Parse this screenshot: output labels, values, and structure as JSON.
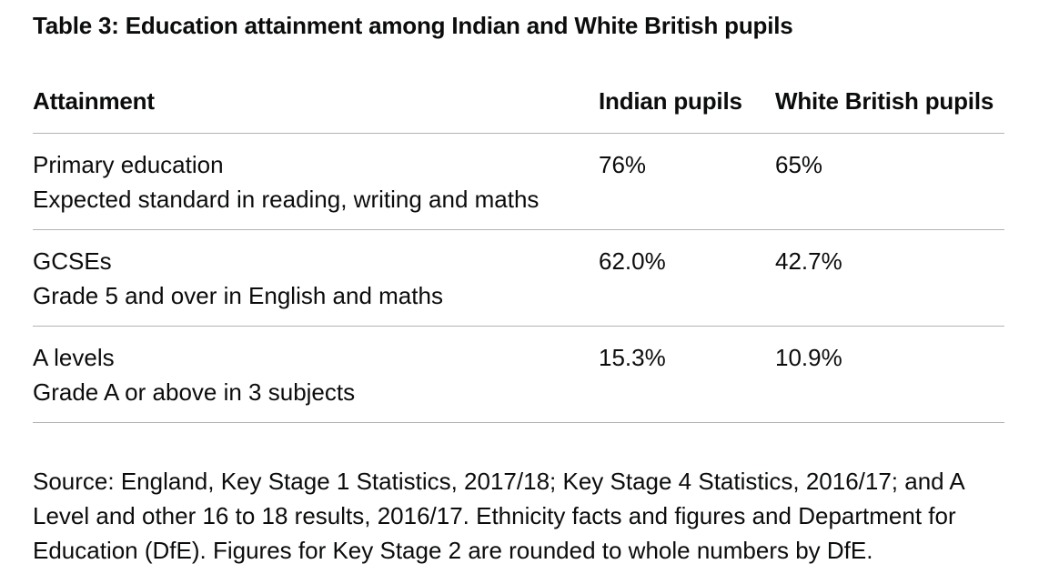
{
  "title": "Table 3: Education attainment among Indian and White British pupils",
  "table": {
    "headers": [
      "Attainment",
      "Indian pupils",
      "White British pupils"
    ],
    "rows": [
      {
        "attainment": "Primary education",
        "measure": "Expected standard in reading, writing and maths",
        "indian": "76%",
        "white_british": "65%"
      },
      {
        "attainment": "GCSEs",
        "measure": "Grade 5 and over in English and maths",
        "indian": "62.0%",
        "white_british": "42.7%"
      },
      {
        "attainment": "A levels",
        "measure": "Grade A or above in 3 subjects",
        "indian": "15.3%",
        "white_british": "10.9%"
      }
    ]
  },
  "source": "Source: England, Key Stage 1 Statistics, 2017/18; Key Stage 4 Statistics, 2016/17; and A Level and other 16 to 18 results, 2016/17. Ethnicity facts and figures and Department for Education (DfE). Figures for Key Stage 2 are rounded to whole numbers by DfE."
}
